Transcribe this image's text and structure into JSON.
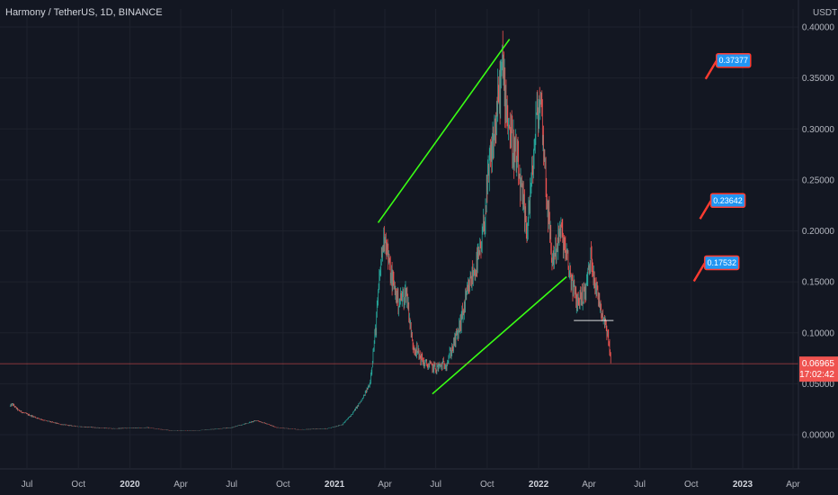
{
  "header": {
    "title": "Harmony / TetherUS, 1D, BINANCE",
    "currency": "USDT"
  },
  "colors": {
    "background": "#131722",
    "up": "#26a69a",
    "down": "#ef5350",
    "trendline": "#39ff14",
    "flag_fill": "#2196f3",
    "flag_border": "#ff3b30",
    "price_line": "#ef5350",
    "support_line": "#ffffff"
  },
  "chart_data": {
    "type": "candlestick",
    "symbol": "Harmony / TetherUS",
    "interval": "1D",
    "exchange": "BINANCE",
    "ylim": [
      -0.04,
      0.4
    ],
    "y_ticks": [
      {
        "value": 0.4,
        "label": "0.40000"
      },
      {
        "value": 0.35,
        "label": "0.35000"
      },
      {
        "value": 0.3,
        "label": "0.30000"
      },
      {
        "value": 0.25,
        "label": "0.25000"
      },
      {
        "value": 0.2,
        "label": "0.20000"
      },
      {
        "value": 0.15,
        "label": "0.15000"
      },
      {
        "value": 0.1,
        "label": "0.10000"
      },
      {
        "value": 0.05,
        "label": "0.05000"
      },
      {
        "value": 0.0,
        "label": "0.00000"
      }
    ],
    "x_range": [
      "2019-06-01",
      "2023-04-20"
    ],
    "x_ticks": [
      {
        "date": "2019-07-01",
        "label": "Jul",
        "bold": false
      },
      {
        "date": "2019-10-01",
        "label": "Oct",
        "bold": false
      },
      {
        "date": "2020-01-01",
        "label": "2020",
        "bold": true
      },
      {
        "date": "2020-04-01",
        "label": "Apr",
        "bold": false
      },
      {
        "date": "2020-07-01",
        "label": "Jul",
        "bold": false
      },
      {
        "date": "2020-10-01",
        "label": "Oct",
        "bold": false
      },
      {
        "date": "2021-01-01",
        "label": "2021",
        "bold": true
      },
      {
        "date": "2021-04-01",
        "label": "Apr",
        "bold": false
      },
      {
        "date": "2021-07-01",
        "label": "Jul",
        "bold": false
      },
      {
        "date": "2021-10-01",
        "label": "Oct",
        "bold": false
      },
      {
        "date": "2022-01-01",
        "label": "2022",
        "bold": true
      },
      {
        "date": "2022-04-01",
        "label": "Apr",
        "bold": false
      },
      {
        "date": "2022-07-01",
        "label": "Jul",
        "bold": false
      },
      {
        "date": "2022-10-01",
        "label": "Oct",
        "bold": false
      },
      {
        "date": "2023-01-01",
        "label": "2023",
        "bold": true
      },
      {
        "date": "2023-04-01",
        "label": "Apr",
        "bold": false
      }
    ],
    "price_path": [
      [
        "2019-06-01",
        0.028
      ],
      [
        "2019-06-05",
        0.03
      ],
      [
        "2019-06-15",
        0.024
      ],
      [
        "2019-07-01",
        0.02
      ],
      [
        "2019-08-01",
        0.014
      ],
      [
        "2019-09-01",
        0.01
      ],
      [
        "2019-10-01",
        0.008
      ],
      [
        "2019-12-01",
        0.006
      ],
      [
        "2020-02-01",
        0.007
      ],
      [
        "2020-03-15",
        0.004
      ],
      [
        "2020-05-01",
        0.004
      ],
      [
        "2020-07-01",
        0.007
      ],
      [
        "2020-08-15",
        0.014
      ],
      [
        "2020-09-20",
        0.007
      ],
      [
        "2020-11-01",
        0.005
      ],
      [
        "2020-12-20",
        0.006
      ],
      [
        "2021-01-15",
        0.01
      ],
      [
        "2021-02-01",
        0.02
      ],
      [
        "2021-02-20",
        0.035
      ],
      [
        "2021-03-05",
        0.05
      ],
      [
        "2021-03-15",
        0.1
      ],
      [
        "2021-03-25",
        0.17
      ],
      [
        "2021-04-01",
        0.2
      ],
      [
        "2021-04-10",
        0.16
      ],
      [
        "2021-04-25",
        0.13
      ],
      [
        "2021-05-10",
        0.14
      ],
      [
        "2021-05-20",
        0.09
      ],
      [
        "2021-06-10",
        0.07
      ],
      [
        "2021-07-01",
        0.065
      ],
      [
        "2021-07-20",
        0.07
      ],
      [
        "2021-08-10",
        0.1
      ],
      [
        "2021-09-01",
        0.15
      ],
      [
        "2021-09-20",
        0.18
      ],
      [
        "2021-10-05",
        0.26
      ],
      [
        "2021-10-15",
        0.3
      ],
      [
        "2021-10-28",
        0.36
      ],
      [
        "2021-11-10",
        0.3
      ],
      [
        "2021-11-25",
        0.26
      ],
      [
        "2021-12-10",
        0.2
      ],
      [
        "2021-12-20",
        0.25
      ],
      [
        "2021-12-28",
        0.31
      ],
      [
        "2022-01-05",
        0.33
      ],
      [
        "2022-01-15",
        0.24
      ],
      [
        "2022-01-25",
        0.17
      ],
      [
        "2022-02-10",
        0.2
      ],
      [
        "2022-02-25",
        0.16
      ],
      [
        "2022-03-10",
        0.13
      ],
      [
        "2022-03-25",
        0.14
      ],
      [
        "2022-04-05",
        0.175
      ],
      [
        "2022-04-15",
        0.14
      ],
      [
        "2022-04-25",
        0.12
      ],
      [
        "2022-05-05",
        0.1
      ],
      [
        "2022-05-10",
        0.07
      ]
    ],
    "last_price": {
      "value": 0.06965,
      "label": "0.06965",
      "countdown": "17:02:42"
    },
    "trendlines": [
      {
        "from": [
          "2021-03-20",
          0.208
        ],
        "to": [
          "2021-11-10",
          0.388
        ]
      },
      {
        "from": [
          "2021-06-25",
          0.04
        ],
        "to": [
          "2022-02-20",
          0.155
        ]
      }
    ],
    "support_line": {
      "from": [
        "2022-03-05",
        0.112
      ],
      "to": [
        "2022-05-15",
        0.112
      ],
      "value": 0.112
    },
    "targets": [
      {
        "value": 0.37377,
        "label": "0.37377",
        "date": "2022-11-15"
      },
      {
        "value": 0.23642,
        "label": "0.23642",
        "date": "2022-11-05"
      },
      {
        "value": 0.17532,
        "label": "0.17532",
        "date": "2022-10-25"
      }
    ]
  }
}
